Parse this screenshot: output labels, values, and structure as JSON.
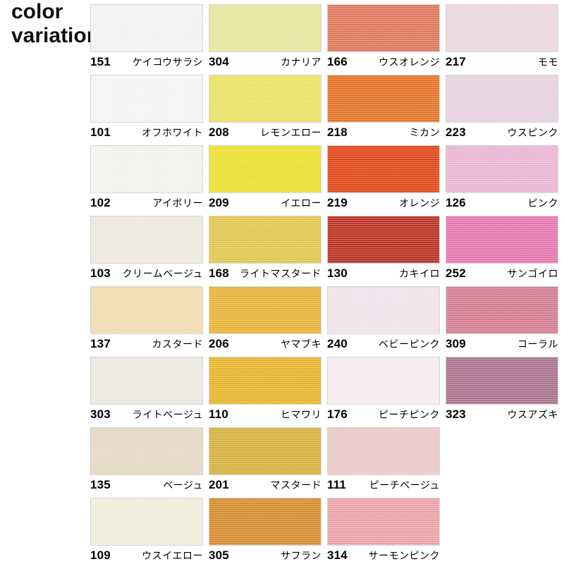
{
  "page": {
    "title_line1": "color",
    "title_line2": "variation"
  },
  "swatches": [
    {
      "number": "151",
      "name": "ケイコウサラシ",
      "color": "#f5f5f3"
    },
    {
      "number": "304",
      "name": "カナリア",
      "color": "#ebe8a0"
    },
    {
      "number": "166",
      "name": "ウスオレンジ",
      "color": "#e07a5d"
    },
    {
      "number": "217",
      "name": "モモ",
      "color": "#eed9de"
    },
    {
      "number": "101",
      "name": "オフホワイト",
      "color": "#f7f7f5"
    },
    {
      "number": "208",
      "name": "レモンエロー",
      "color": "#ece468"
    },
    {
      "number": "218",
      "name": "ミカン",
      "color": "#e67527"
    },
    {
      "number": "223",
      "name": "ウスピンク",
      "color": "#e9d3e1"
    },
    {
      "number": "102",
      "name": "アイボリー",
      "color": "#f6f5f0"
    },
    {
      "number": "209",
      "name": "イエロー",
      "color": "#f0e233"
    },
    {
      "number": "219",
      "name": "オレンジ",
      "color": "#e24a1b"
    },
    {
      "number": "126",
      "name": "ピンク",
      "color": "#ecb7d7"
    },
    {
      "number": "103",
      "name": "クリームベージュ",
      "color": "#efebdf"
    },
    {
      "number": "168",
      "name": "ライトマスタード",
      "color": "#e3c84f"
    },
    {
      "number": "130",
      "name": "カキイロ",
      "color": "#bc3425"
    },
    {
      "number": "252",
      "name": "サンゴイロ",
      "color": "#e779b2"
    },
    {
      "number": "137",
      "name": "カスタード",
      "color": "#f3deb1"
    },
    {
      "number": "206",
      "name": "ヤマブキ",
      "color": "#eab63b"
    },
    {
      "number": "240",
      "name": "ベビーピンク",
      "color": "#f3e4ec"
    },
    {
      "number": "309",
      "name": "コーラル",
      "color": "#d77f94"
    },
    {
      "number": "303",
      "name": "ライトベージュ",
      "color": "#eeeae3"
    },
    {
      "number": "110",
      "name": "ヒマワリ",
      "color": "#e9b72f"
    },
    {
      "number": "176",
      "name": "ピーチピンク",
      "color": "#f8eff1"
    },
    {
      "number": "323",
      "name": "ウスアズキ",
      "color": "#ac7590"
    },
    {
      "number": "135",
      "name": "ベージュ",
      "color": "#e8dac5"
    },
    {
      "number": "201",
      "name": "マスタード",
      "color": "#dab240"
    },
    {
      "number": "111",
      "name": "ピーチベージュ",
      "color": "#edcac7"
    },
    {
      "number": "109",
      "name": "ウスイエロー",
      "color": "#f3f0de"
    },
    {
      "number": "305",
      "name": "サフラン",
      "color": "#da8f30"
    },
    {
      "number": "314",
      "name": "サーモンピンク",
      "color": "#eca5ac"
    }
  ]
}
